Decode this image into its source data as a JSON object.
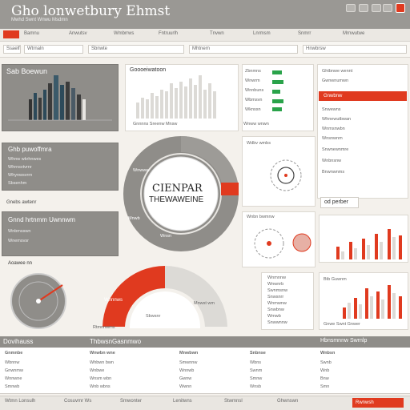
{
  "header": {
    "title": "Gho lonwetbury Ehmst",
    "subtitle": "Mwhd Swnt Wnwu Msdmn"
  },
  "toolbar": {
    "items": [
      "Bamnu",
      "Anwutsv",
      "Wmbrrws",
      "Fntruurlh",
      "Tnvwn",
      "Lnrmsm",
      "Snmrr",
      "Mrnwutwe"
    ]
  },
  "filters": [
    "Ssaelf",
    "Wtrnaln",
    "Sbnwte",
    "Mhtnern",
    "Hnwbrsw"
  ],
  "panels": {
    "sales": {
      "title": "Sab Boewun"
    },
    "summary": {
      "title": "Ghb puwoffmra",
      "rows": [
        "Whnw wkrhnwes",
        "Whrnsvtvrnr",
        "Whynwsvrrn",
        "Sbsenhm"
      ],
      "footer": "Gnebs awtenr"
    },
    "trend": {
      "title": "Goooeiwatoon",
      "footer": "Gnnnns Sreenw Mnsw"
    },
    "status": {
      "rows": [
        "Zbnmns",
        "Wnwrm",
        "Wnnbuns",
        "Wbmsvn",
        "Wknssn"
      ],
      "footer": "Wnww wnwn"
    },
    "donut": {
      "center_line1": "CIENPAR",
      "center_line2": "THEWAWEINE",
      "labels": [
        "Wnwww",
        "Mnwb",
        "Wnsn"
      ]
    },
    "dist": {
      "title": "Gnnd hrtnmm Uwnnwm",
      "rows": [
        "Wnbmsswn",
        "Wnemsvsr"
      ]
    },
    "gauge": {
      "title": "Aoawee nn"
    },
    "half": {
      "label": "Wnnnws",
      "footer1": "Rtmnnwms",
      "footer2": "Sbwsnr",
      "footer3": "Mnwst wm"
    },
    "mini": {
      "title1": "Wdbv wmbs",
      "title2": "Wnbn bwmnw"
    },
    "legend": {
      "rows": [
        "Wnmnnw",
        "Wnwnrb",
        "Swnmsnw",
        "Snwsnrr",
        "Wnmwnw",
        "Snwbnw",
        "Wmwb",
        "Snwwnnw",
        "Wnmsw"
      ]
    },
    "right": {
      "rows": [
        "Ghtbnwe wennt",
        "Gwnwnumwn",
        "Snwewns",
        "Whnewutbwan",
        "Wnmsnwbn",
        "Wnsnwnm",
        "Snwnewnmre",
        "Wnbnsnw",
        "Bnwnwnms"
      ],
      "highlight": "Gnwbnw",
      "box": "od perber"
    },
    "bars": {
      "title": "Btb Guwnm",
      "footer": "Gnwe Swnt Gnwer"
    }
  },
  "table": {
    "title": "Dovihauss",
    "mid": "ThbwsnGasnmwo",
    "right": "Hbnsmnnw Swrnlp",
    "cols": [
      "Gnmnbe",
      "Wnwbn wne",
      "Mnwbwn",
      "Snbnse",
      "Wnbsn"
    ],
    "rows": [
      [
        "Wbnnw",
        "Whbwn bwn",
        "Smwnnw",
        "Wbns",
        "Swnb"
      ],
      [
        "Gnwnmw",
        "Wnbwe",
        "Wnnwb",
        "Swnm",
        "Wnb"
      ],
      [
        "Wnnwne",
        "Wnsm wbn",
        "Gwnw",
        "Smnw",
        "Bnw"
      ],
      [
        "Smnwb",
        "Wnb wbns",
        "Wwnn",
        "Wnsb",
        "Smn"
      ]
    ]
  },
  "status": {
    "items": [
      "Wtmn Lonsulh",
      "Cosuvmr Ws",
      "Smwonter",
      "Lenitwns",
      "Stwmnsl",
      "Ghwnswn"
    ],
    "action": "Rwnwsh"
  },
  "colors": {
    "accent": "#e03a1f",
    "green": "#2aa34a",
    "gray": "#8f8d89"
  }
}
